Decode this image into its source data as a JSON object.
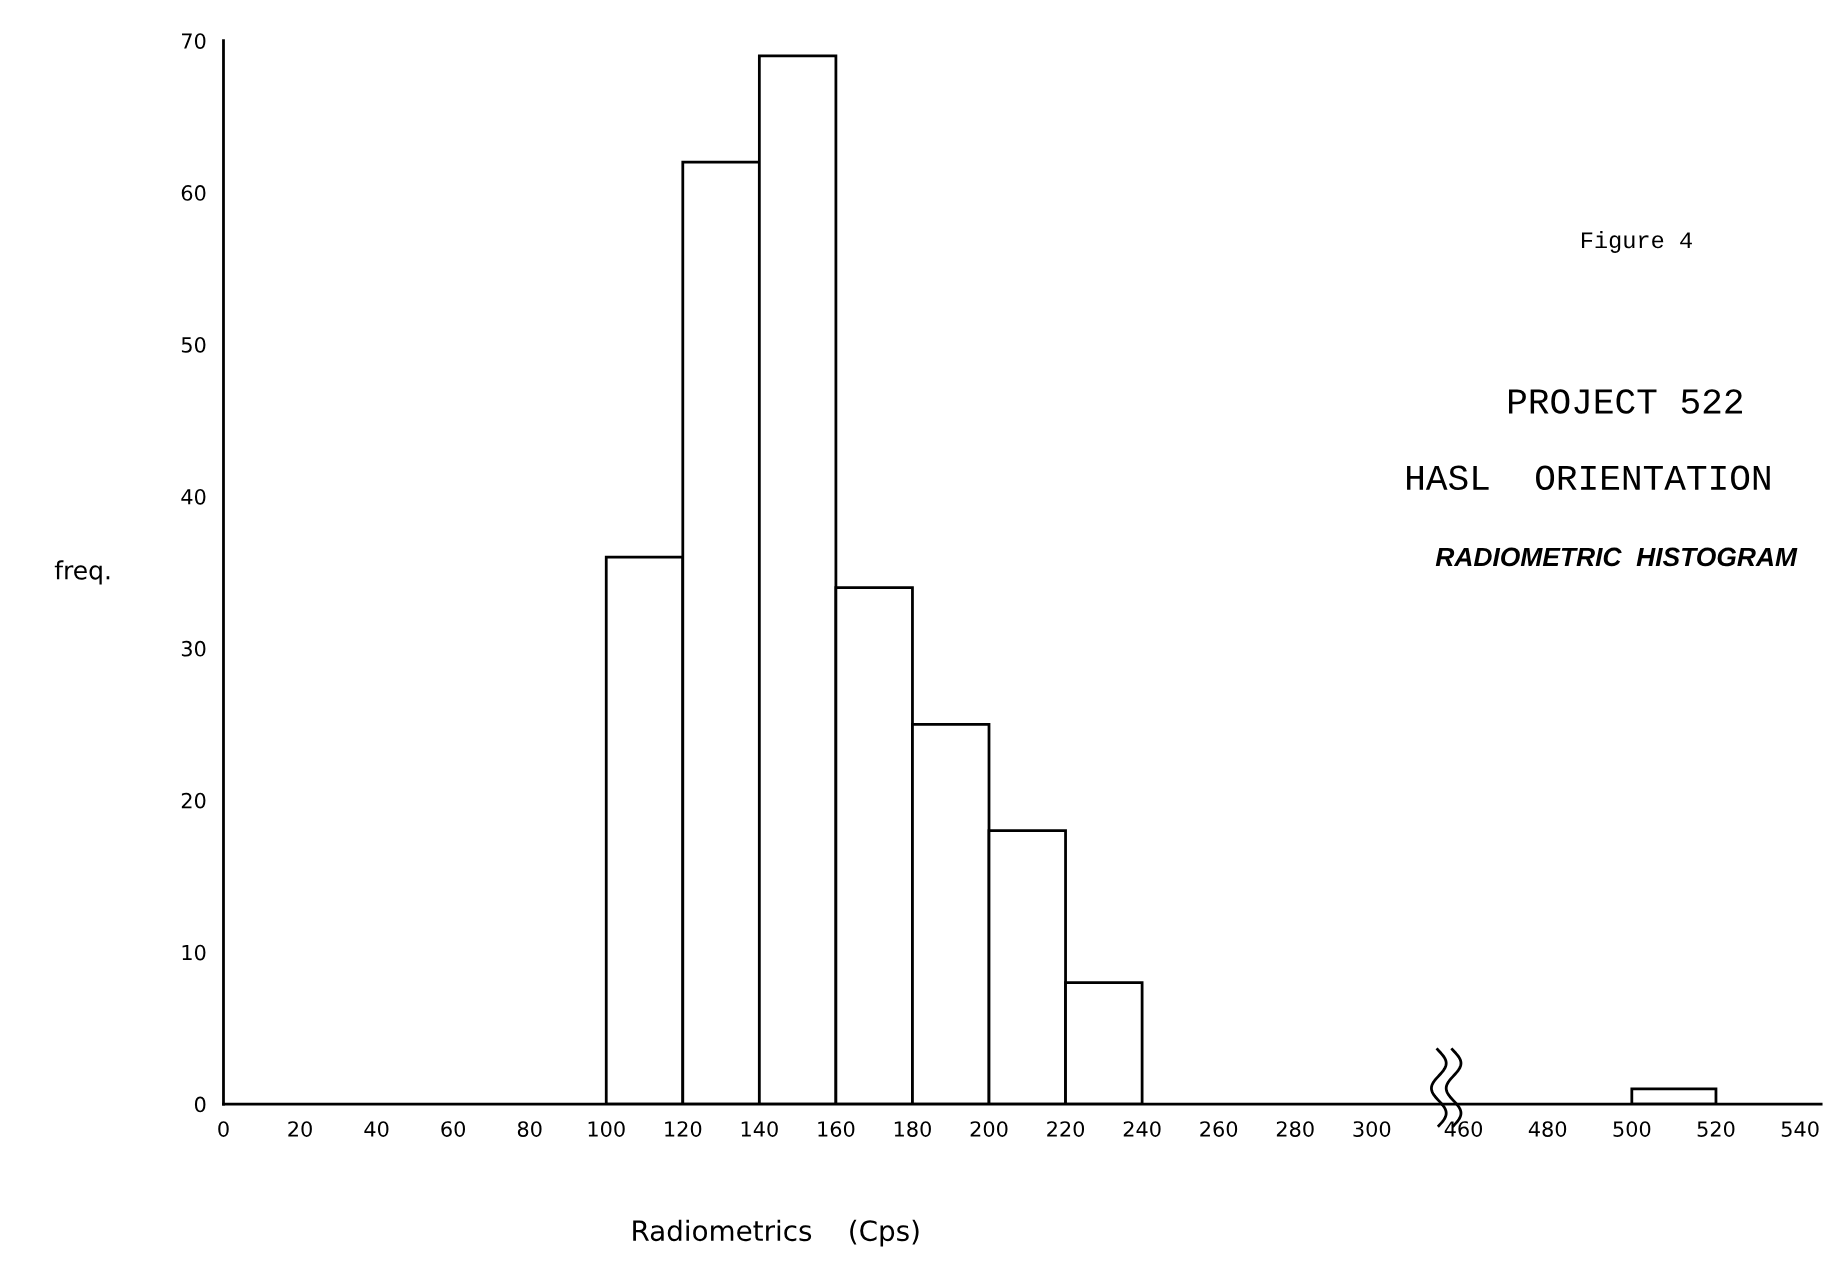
{
  "chart_data": [
    {
      "type": "histogram",
      "bins": [
        100,
        120,
        140,
        160,
        180,
        200,
        220,
        240
      ],
      "values": [
        36,
        62,
        69,
        34,
        25,
        18,
        8
      ],
      "color": "#ffffff",
      "xlim": [
        0,
        318
      ],
      "xticks": [
        0,
        20,
        40,
        60,
        80,
        100,
        120,
        140,
        160,
        180,
        200,
        220,
        240,
        260,
        280,
        300
      ],
      "ylim": [
        0,
        70
      ],
      "yticks": [
        0,
        10,
        20,
        30,
        40,
        50,
        60,
        70
      ],
      "ylabel": "freq.",
      "xlabel": "Radiometrics    (Cps)",
      "grid": false,
      "annotations": [
        "Figure 4",
        "PROJECT 522",
        "HASL  ORIENTATION",
        "RADIOMETRIC  HISTOGRAM"
      ]
    },
    {
      "type": "histogram",
      "bins": [
        500,
        520
      ],
      "values": [
        1
      ],
      "color": "#ffffff",
      "xlim": [
        455,
        545
      ],
      "xticks": [
        460,
        480,
        500,
        520,
        540
      ],
      "ylim": [
        0,
        70
      ],
      "tick_labels": "x",
      "grid": false
    }
  ]
}
